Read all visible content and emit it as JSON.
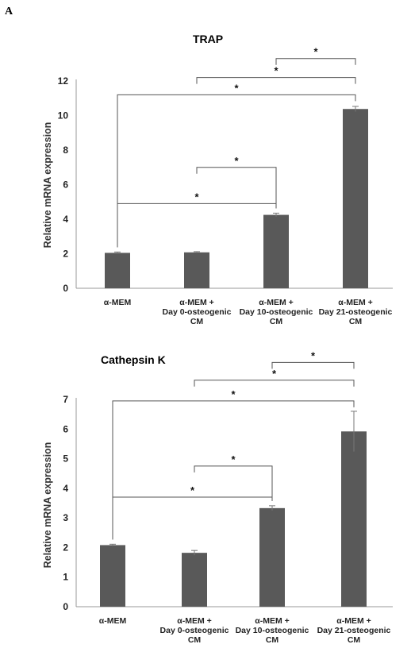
{
  "figure": {
    "panel_label": "A"
  },
  "chart_data": [
    {
      "type": "bar",
      "title": "TRAP",
      "ylabel": "Relative  mRNA expression",
      "xlabel": "",
      "ylim": [
        0,
        12
      ],
      "yticks": [
        0,
        2,
        4,
        6,
        8,
        10,
        12
      ],
      "categories": [
        [
          "α-MEM"
        ],
        [
          "α-MEM +",
          "Day 0-osteogenic",
          "CM"
        ],
        [
          "α-MEM +",
          "Day 10-osteogenic",
          "CM"
        ],
        [
          "α-MEM +",
          "Day 21-osteogenic",
          "CM"
        ]
      ],
      "values": [
        2.05,
        2.08,
        4.25,
        10.38
      ],
      "errors": [
        0.05,
        0.04,
        0.1,
        0.15
      ],
      "bar_color": "#595959",
      "grid": false,
      "significance": [
        {
          "from": 0,
          "to": 2,
          "label": "*",
          "level": 4.9
        },
        {
          "from": 1,
          "to": 2,
          "label": "*",
          "level": 7.0
        },
        {
          "from": 0,
          "to": 3,
          "label": "*",
          "level": 11.2
        },
        {
          "from": 1,
          "to": 3,
          "label": "*",
          "level": 12.2
        },
        {
          "from": 2,
          "to": 3,
          "label": "*",
          "level": 13.3
        }
      ]
    },
    {
      "type": "bar",
      "title": "Cathepsin K",
      "ylabel": "Relative  mRNA expression",
      "xlabel": "",
      "ylim": [
        0,
        7
      ],
      "yticks": [
        0,
        1,
        2,
        3,
        4,
        5,
        6,
        7
      ],
      "categories": [
        [
          "α-MEM"
        ],
        [
          "α-MEM +",
          "Day 0-osteogenic",
          "CM"
        ],
        [
          "α-MEM +",
          "Day 10-osteogenic",
          "CM"
        ],
        [
          "α-MEM +",
          "Day 21-osteogenic",
          "CM"
        ]
      ],
      "values": [
        2.08,
        1.82,
        3.33,
        5.92
      ],
      "errors": [
        0.03,
        0.08,
        0.08,
        0.68
      ],
      "bar_color": "#595959",
      "grid": false,
      "significance": [
        {
          "from": 0,
          "to": 2,
          "label": "*",
          "level": 3.7
        },
        {
          "from": 1,
          "to": 2,
          "label": "*",
          "level": 4.75
        },
        {
          "from": 0,
          "to": 3,
          "label": "*",
          "level": 6.95
        },
        {
          "from": 1,
          "to": 3,
          "label": "*",
          "level": 7.65
        },
        {
          "from": 2,
          "to": 3,
          "label": "*",
          "level": 8.25
        }
      ]
    }
  ]
}
